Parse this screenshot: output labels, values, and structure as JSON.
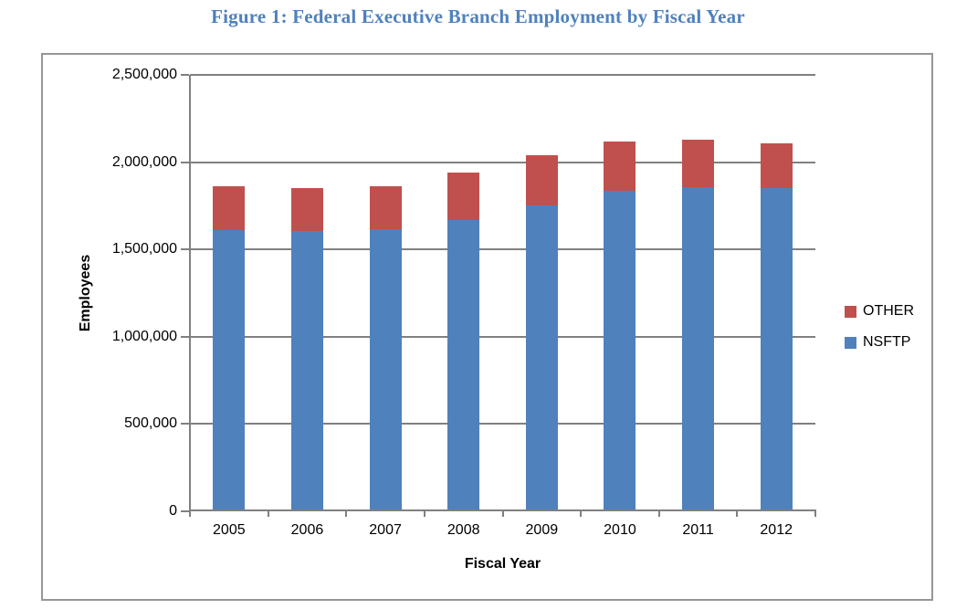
{
  "chart_data": {
    "type": "bar",
    "stacked": true,
    "title": "Figure 1: Federal Executive Branch Employment by Fiscal Year",
    "categories": [
      "2005",
      "2006",
      "2007",
      "2008",
      "2009",
      "2010",
      "2011",
      "2012"
    ],
    "series": [
      {
        "name": "NSFTP",
        "color": "#4F81BD",
        "values": [
          1610000,
          1605000,
          1615000,
          1670000,
          1750000,
          1835000,
          1855000,
          1850000
        ]
      },
      {
        "name": "OTHER",
        "color": "#C0504D",
        "values": [
          250000,
          245000,
          245000,
          270000,
          290000,
          285000,
          275000,
          260000
        ]
      }
    ],
    "totals": [
      1860000,
      1850000,
      1860000,
      1940000,
      2040000,
      2120000,
      2130000,
      2110000
    ],
    "xlabel": "Fiscal Year",
    "ylabel": "Employees",
    "ylim": [
      0,
      2500000
    ],
    "ytick_interval": 500000,
    "ytick_labels": [
      "0",
      "500,000",
      "1,000,000",
      "1,500,000",
      "2,000,000",
      "2,500,000"
    ],
    "grid": true,
    "legend_position": "right-outside-plot"
  },
  "legend": {
    "items": [
      {
        "label": "OTHER",
        "color": "#C0504D"
      },
      {
        "label": "NSFTP",
        "color": "#4F81BD"
      }
    ]
  },
  "colors": {
    "title": "#4F81BD",
    "nsftp_bar": "#4F81BD",
    "other_bar": "#C0504D",
    "gridline": "#808080",
    "axis": "#808080",
    "frame_border": "#969696",
    "text": "#000000"
  }
}
